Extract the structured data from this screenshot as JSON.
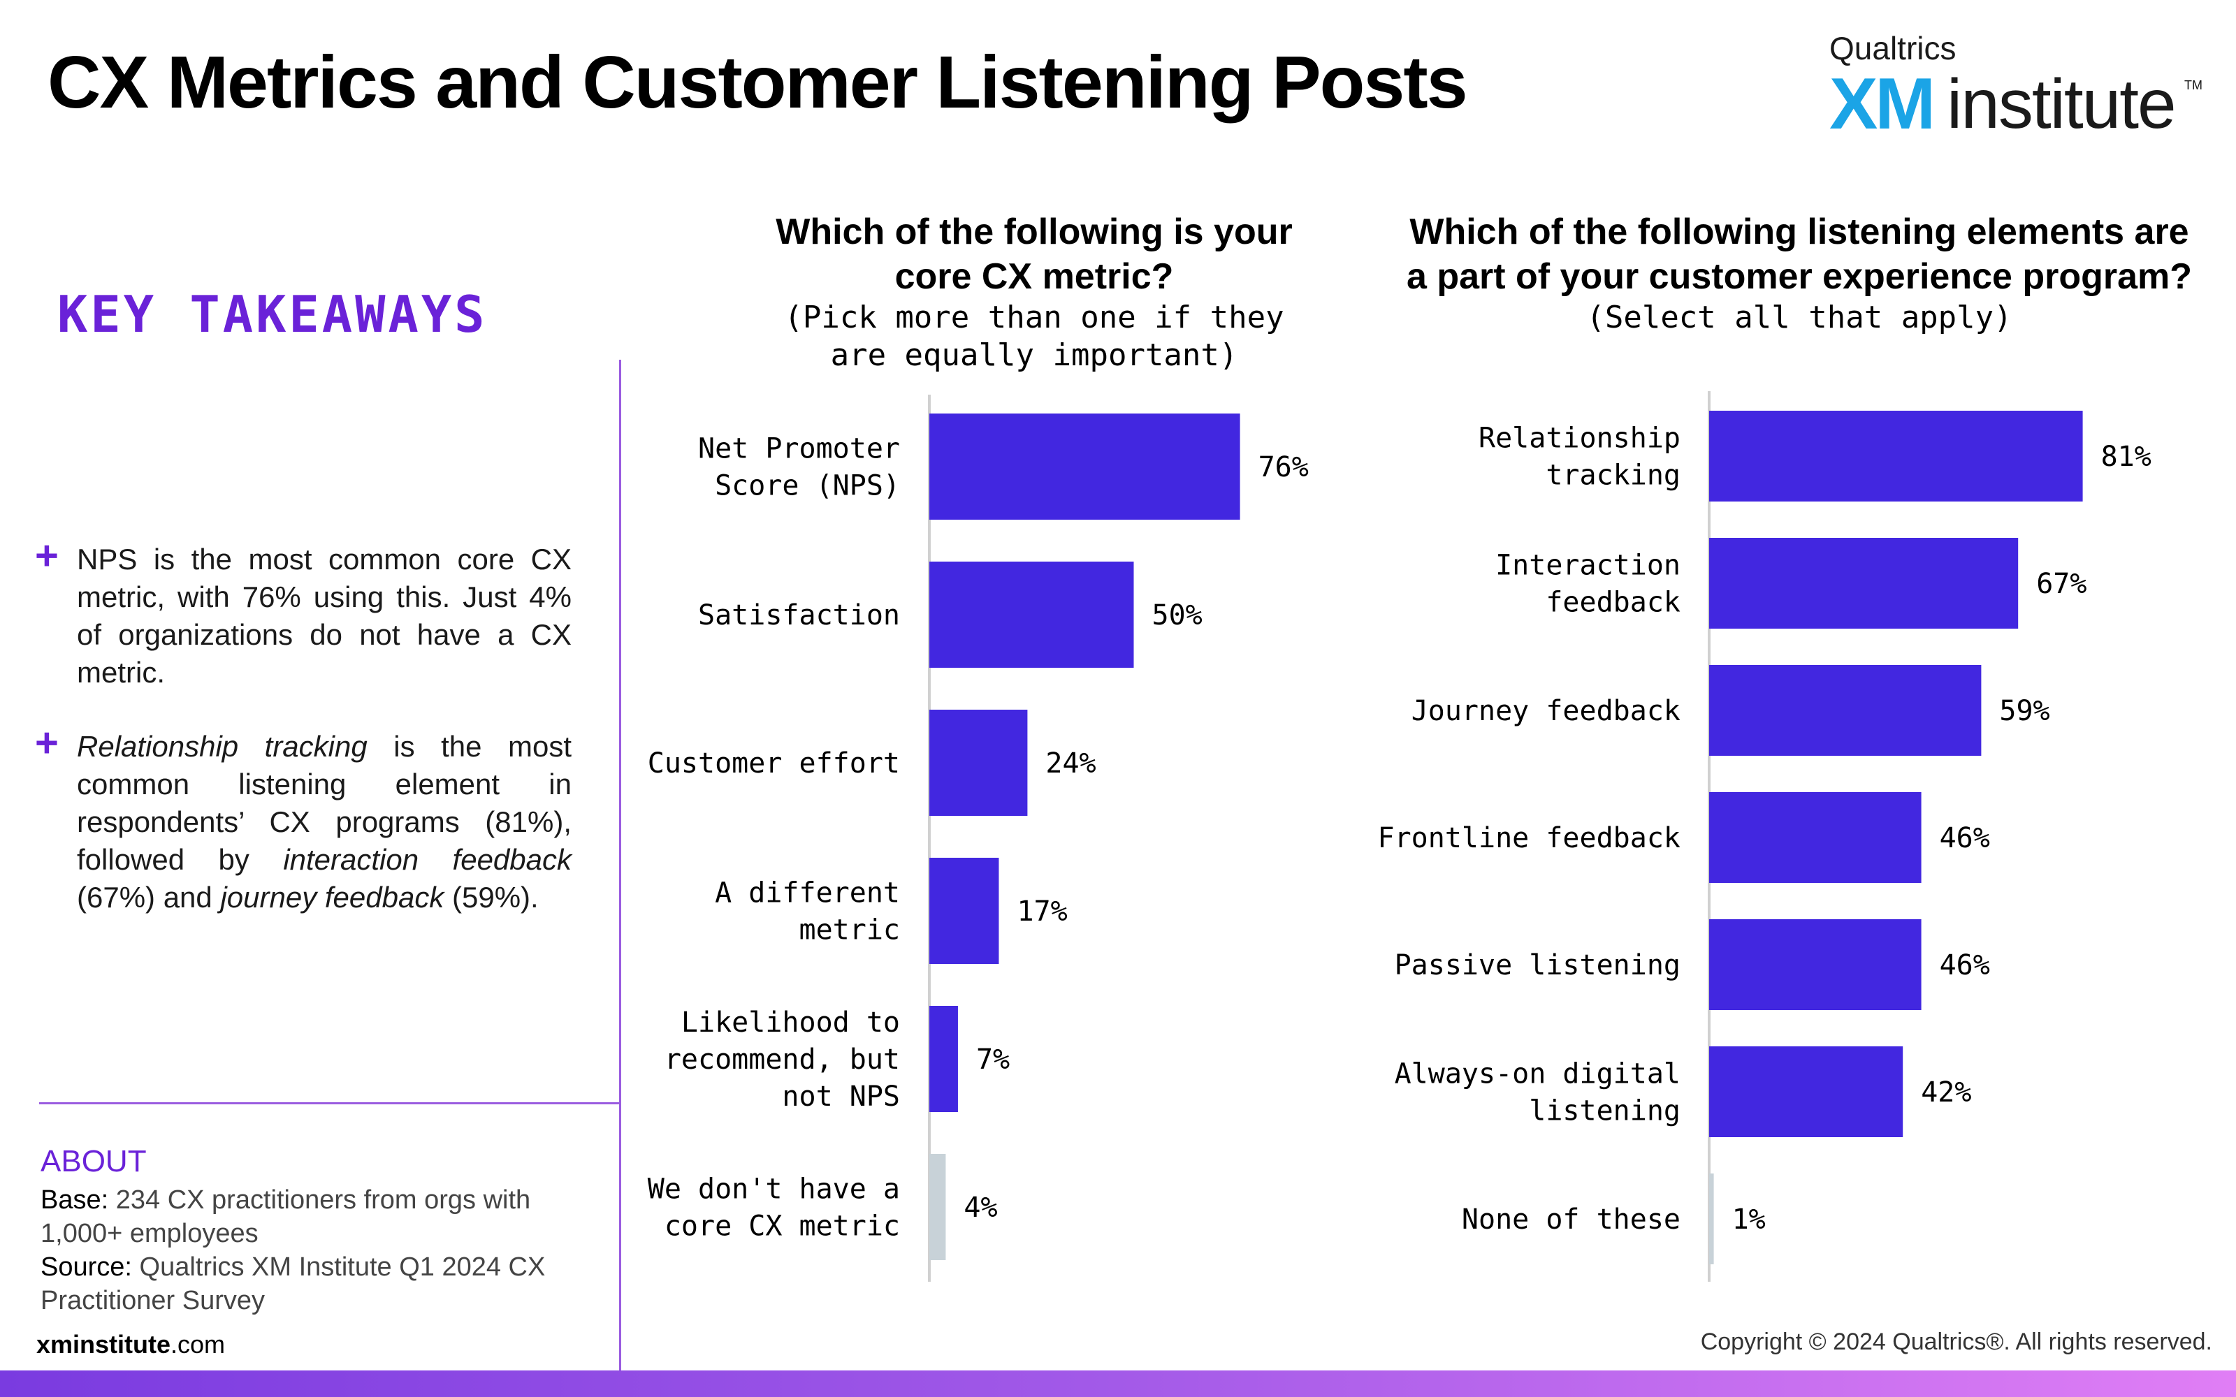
{
  "header": {
    "title": "CX Metrics and Customer Listening Posts",
    "logo_brand": "Qualtrics",
    "logo_xm": "XM",
    "logo_institute": "institute",
    "logo_tm": "TM"
  },
  "sidebar": {
    "heading": "KEY TAKEAWAYS",
    "takeaways": [
      "NPS is the most common core CX metric, with 76% using this. Just 4% of organizations do not have a CX metric.",
      "Relationship tracking is the most common listening element in respondents’ CX programs (81%), followed by interaction feedback (67%) and journey feedback (59%)."
    ],
    "takeaway2_parts": {
      "a": "Relationship tracking",
      "b": " is the most common listening element in respondents’ CX programs (81%), followed by ",
      "c": "interaction feedback",
      "d": " (67%) and ",
      "e": "journey feedback",
      "f": " (59%)."
    },
    "about_heading": "ABOUT",
    "base_label": "Base:",
    "base_value": " 234 CX practitioners from orgs with 1,000+ employees",
    "source_label": "Source:",
    "source_value": " Qualtrics XM Institute Q1 2024 CX Practitioner Survey"
  },
  "footer": {
    "site_bold": "xminstitute",
    "site_rest": ".com",
    "copyright": "Copyright © 2024 Qualtrics®. All rights reserved."
  },
  "colors": {
    "bar": "#4227e0",
    "bar_none": "#c8d2d8",
    "accent": "#6a22d8",
    "axis": "#d0d0d0"
  },
  "chart_data": [
    {
      "type": "bar",
      "orientation": "horizontal",
      "title": "Which of the following is your core CX metric?",
      "subtitle": "(Pick more than one if they are equally important)",
      "categories": [
        [
          "Net Promoter",
          "Score (NPS)"
        ],
        [
          "Satisfaction"
        ],
        [
          "Customer effort"
        ],
        [
          "A different",
          "metric"
        ],
        [
          "Likelihood to",
          "recommend, but",
          "not NPS"
        ],
        [
          "We don't have a",
          "core CX metric"
        ]
      ],
      "values": [
        76,
        50,
        24,
        17,
        7,
        4
      ],
      "labels": [
        "76%",
        "50%",
        "24%",
        "17%",
        "7%",
        "4%"
      ],
      "unit": "%",
      "xlim": [
        0,
        100
      ],
      "grid": false
    },
    {
      "type": "bar",
      "orientation": "horizontal",
      "title": "Which of the following listening elements are a part of your customer experience program?",
      "subtitle": "(Select all that apply)",
      "categories": [
        [
          "Relationship",
          "tracking"
        ],
        [
          "Interaction",
          "feedback"
        ],
        [
          "Journey feedback"
        ],
        [
          "Frontline feedback"
        ],
        [
          "Passive listening"
        ],
        [
          "Always-on digital",
          "listening"
        ],
        [
          "None of these"
        ]
      ],
      "values": [
        81,
        67,
        59,
        46,
        46,
        42,
        1
      ],
      "labels": [
        "81%",
        "67%",
        "59%",
        "46%",
        "46%",
        "42%",
        "1%"
      ],
      "unit": "%",
      "xlim": [
        0,
        100
      ],
      "grid": false
    }
  ]
}
